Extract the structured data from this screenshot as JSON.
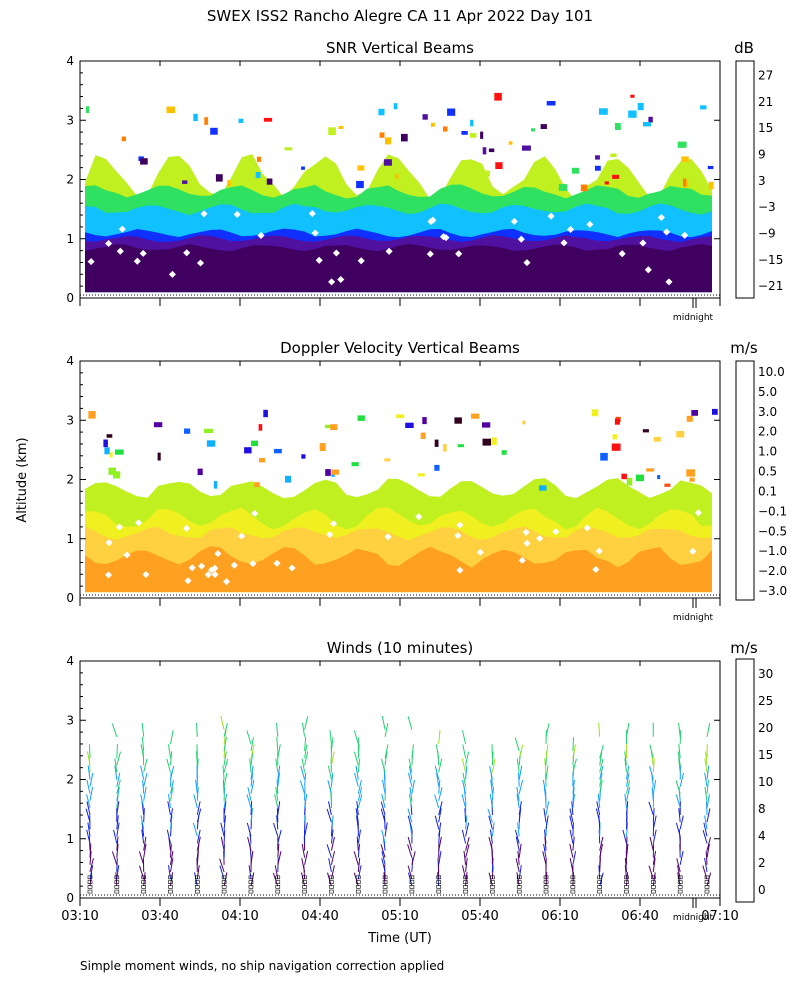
{
  "page_title": "SWEX ISS2 Rancho Alegre CA  11 Apr 2022 Day 101",
  "footnote": "Simple moment winds, no ship navigation correction applied",
  "chart_data": [
    {
      "type": "heatmap",
      "title": "SNR Vertical Beams",
      "ylabel": "",
      "ylim": [
        0,
        4
      ],
      "yticks": [
        "0",
        "1",
        "2",
        "3",
        "4"
      ],
      "marker_label": "midnight",
      "colorbar": {
        "units": "dB",
        "labels": [
          "27",
          "21",
          "15",
          "9",
          "3",
          "−3",
          "−9",
          "−15",
          "−21"
        ],
        "colors": [
          "#ffc000",
          "#ff8000",
          "#ff1010",
          "#400060",
          "#5010a0",
          "#1030ff",
          "#10c0ff",
          "#30e060",
          "#c0f020"
        ]
      },
      "layers": [
        {
          "color": "#c0f020",
          "base_km": 2.05,
          "amplitude": 0.35
        },
        {
          "color": "#30e060",
          "base_km": 1.8,
          "amplitude": 0.1
        },
        {
          "color": "#10c0ff",
          "base_km": 1.5,
          "amplitude": 0.08
        },
        {
          "color": "#1030ff",
          "base_km": 1.1,
          "amplitude": 0.06
        },
        {
          "color": "#5010a0",
          "base_km": 1.0,
          "amplitude": 0.05
        },
        {
          "color": "#400060",
          "base_km": 0.85,
          "amplitude": 0.05
        }
      ]
    },
    {
      "type": "heatmap",
      "title": "Doppler Velocity Vertical Beams",
      "ylabel": "Altitude (km)",
      "ylim": [
        0,
        4
      ],
      "yticks": [
        "0",
        "1",
        "2",
        "3",
        "4"
      ],
      "marker_label": "midnight",
      "colorbar": {
        "units": "m/s",
        "labels": [
          "10.0",
          "5.0",
          "3.0",
          "2.0",
          "1.0",
          "0.5",
          "0.1",
          "−0.1",
          "−0.5",
          "−1.0",
          "−2.0",
          "−3.0"
        ],
        "colors": [
          "#300020",
          "#5000a0",
          "#2010e0",
          "#1060ff",
          "#10b0ff",
          "#20e040",
          "#90f020",
          "#f0f020",
          "#ffd040",
          "#ffa020",
          "#ff5010",
          "#ff1010"
        ]
      },
      "layers": [
        {
          "color": "#c0f020",
          "base_km": 1.85,
          "amplitude": 0.15
        },
        {
          "color": "#f0f020",
          "base_km": 1.35,
          "amplitude": 0.15
        },
        {
          "color": "#ffd040",
          "base_km": 1.1,
          "amplitude": 0.1
        },
        {
          "color": "#ffa020",
          "base_km": 0.7,
          "amplitude": 0.15
        }
      ]
    },
    {
      "type": "wind-barbs",
      "title": "Winds (10 minutes)",
      "ylim": [
        0,
        4
      ],
      "yticks": [
        "0",
        "1",
        "2",
        "3",
        "4"
      ],
      "xlabel": "Time (UT)",
      "xticks": [
        "03:10",
        "03:40",
        "04:10",
        "04:40",
        "05:10",
        "05:40",
        "06:10",
        "06:40",
        "07:10"
      ],
      "marker_label": "midnight",
      "colorbar": {
        "units": "m/s",
        "labels": [
          "30",
          "25",
          "20",
          "15",
          "10",
          "8",
          "4",
          "2",
          "0"
        ],
        "colors": [
          "#ff1000",
          "#ff6000",
          "#ffb000",
          "#a0e020",
          "#20d070",
          "#10a0ff",
          "#1020e0",
          "#500070",
          "#000000"
        ]
      },
      "profile_count": 24
    }
  ]
}
